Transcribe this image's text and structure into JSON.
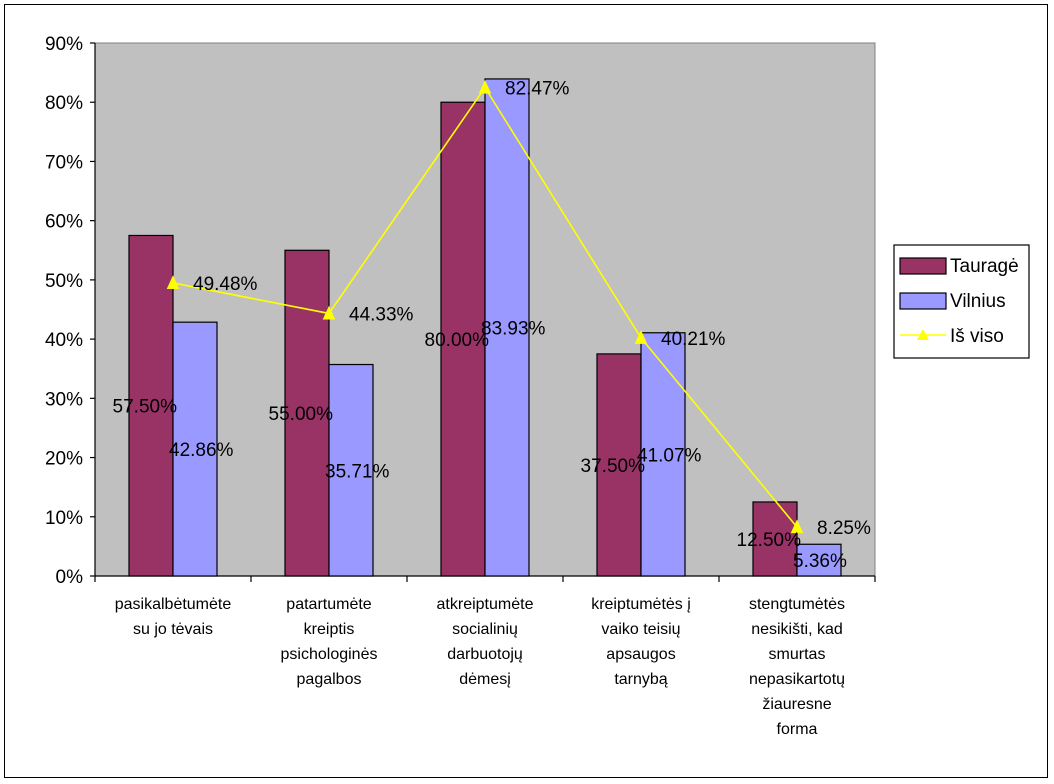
{
  "chart_data": {
    "type": "bar",
    "title": "",
    "xlabel": "",
    "ylabel": "",
    "ylim": [
      0,
      0.9
    ],
    "yticks": [
      "0%",
      "10%",
      "20%",
      "30%",
      "40%",
      "50%",
      "60%",
      "70%",
      "80%",
      "90%"
    ],
    "grid": false,
    "legend_position": "right",
    "categories": [
      [
        "pasikalbėtumėte",
        "su jo tėvais"
      ],
      [
        "patartumėte",
        "kreiptis",
        "psichologinės",
        "pagalbos"
      ],
      [
        "atkreiptumėte",
        "socialinių",
        "darbuotojų",
        "dėmesį"
      ],
      [
        "kreiptumėtės į",
        "vaiko teisių",
        "apsaugos",
        "tarnybą"
      ],
      [
        "stengtumėtės",
        "nesikišti, kad",
        "smurtas",
        "nepasikartotų",
        "žiauresne",
        "forma"
      ]
    ],
    "series": [
      {
        "name": "Tauragė",
        "kind": "bar",
        "color": "#993366",
        "values": [
          0.575,
          0.55,
          0.8,
          0.375,
          0.125
        ],
        "labels": [
          "57.50%",
          "55.00%",
          "80.00%",
          "37.50%",
          "12.50%"
        ]
      },
      {
        "name": "Vilnius",
        "kind": "bar",
        "color": "#9999ff",
        "values": [
          0.4286,
          0.3571,
          0.8393,
          0.4107,
          0.0536
        ],
        "labels": [
          "42.86%",
          "35.71%",
          "83.93%",
          "41.07%",
          "5.36%"
        ]
      },
      {
        "name": "Iš viso",
        "kind": "line",
        "color": "#ffff00",
        "values": [
          0.4948,
          0.4433,
          0.8247,
          0.4021,
          0.0825
        ],
        "labels": [
          "49.48%",
          "44.33%",
          "82.47%",
          "40.21%",
          "8.25%"
        ]
      }
    ],
    "plot_background": "#c0c0c0"
  }
}
